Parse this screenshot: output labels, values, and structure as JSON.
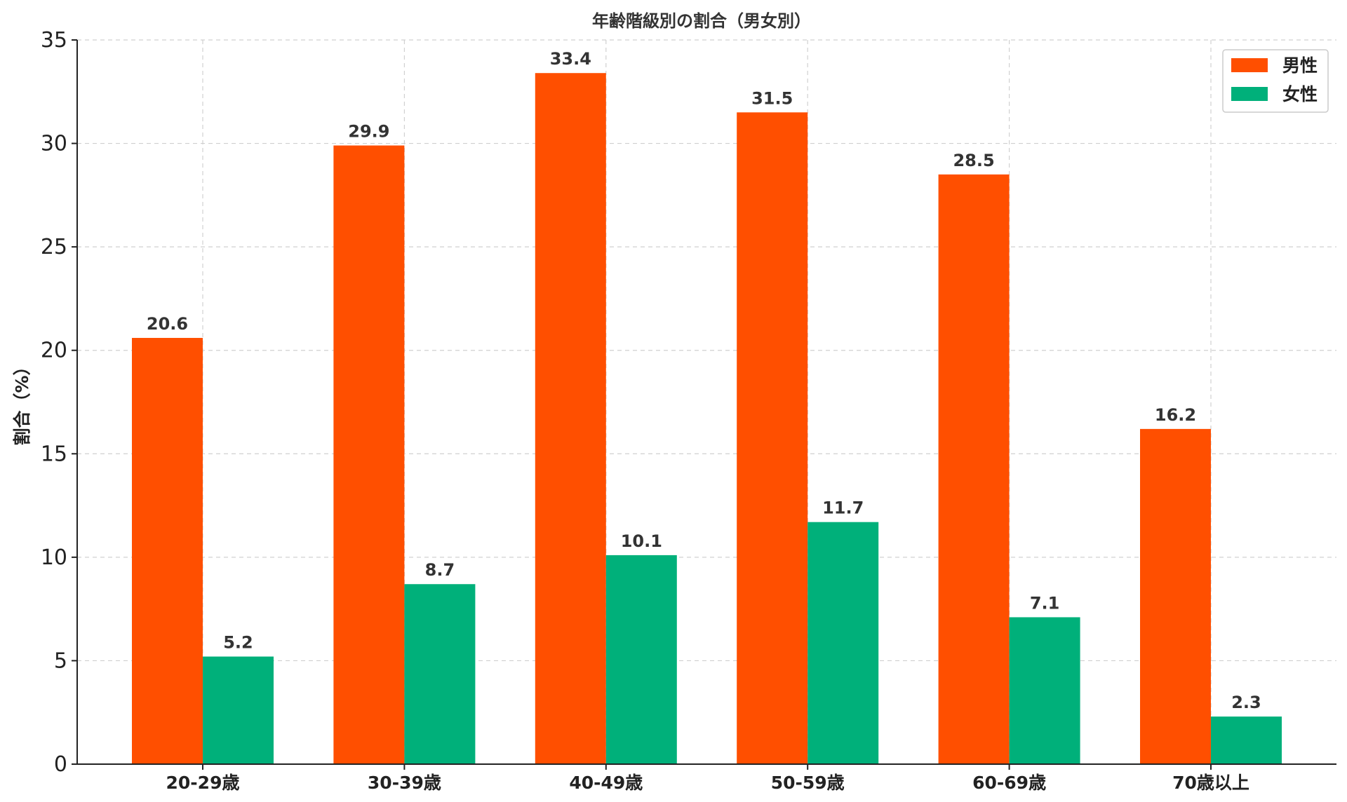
{
  "chart_data": {
    "type": "bar",
    "title": "年齢階級別の割合（男女別）",
    "xlabel": "",
    "ylabel": "割合（%）",
    "categories": [
      "20-29歳",
      "30-39歳",
      "40-49歳",
      "50-59歳",
      "60-69歳",
      "70歳以上"
    ],
    "series": [
      {
        "name": "男性",
        "color": "#ff4f00",
        "values": [
          20.6,
          29.9,
          33.4,
          31.5,
          28.5,
          16.2
        ]
      },
      {
        "name": "女性",
        "color": "#00b07a",
        "values": [
          5.2,
          8.7,
          10.1,
          11.7,
          7.1,
          2.3
        ]
      }
    ],
    "ylim": [
      0,
      35
    ],
    "yticks": [
      0,
      5,
      10,
      15,
      20,
      25,
      30,
      35
    ],
    "grid": true,
    "legend_position": "top-right"
  }
}
